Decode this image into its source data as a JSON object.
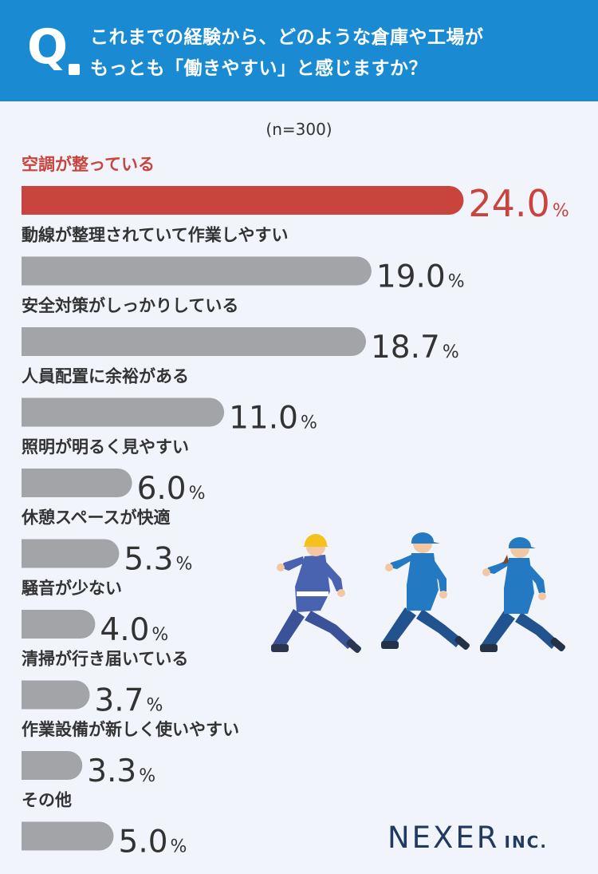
{
  "header": {
    "q_mark": "Q",
    "line1": "これまでの経験から、どのような倉庫や工場が",
    "line2": "もっとも「働きやすい」と感じますか？"
  },
  "sample_note": "(n=300)",
  "brand": {
    "name": "NEXER",
    "suffix": "INC."
  },
  "colors": {
    "header_bg": "#1a8bd3",
    "background": "#f1f4fb",
    "highlight": "#c9443d",
    "bar": "#a3a4a8",
    "text": "#333333",
    "logo": "#213a60"
  },
  "illustration": "three-running-workers-in-blue-uniforms",
  "chart_data": {
    "type": "bar",
    "orientation": "horizontal",
    "unit": "%",
    "categories": [
      "空調が整っている",
      "動線が整理されていて作業しやすい",
      "安全対策がしっかりしている",
      "人員配置に余裕がある",
      "照明が明るく見やすい",
      "休憩スペースが快適",
      "騒音が少ない",
      "清掃が行き届いている",
      "作業設備が新しく使いやすい",
      "その他"
    ],
    "values": [
      24.0,
      19.0,
      18.7,
      11.0,
      6.0,
      5.3,
      4.0,
      3.7,
      3.3,
      5.0
    ],
    "value_labels": [
      "24.0",
      "19.0",
      "18.7",
      "11.0",
      "6.0",
      "5.3",
      "4.0",
      "3.7",
      "3.3",
      "5.0"
    ],
    "highlight_index": 0,
    "title": "",
    "xlabel": "",
    "ylabel": ""
  }
}
